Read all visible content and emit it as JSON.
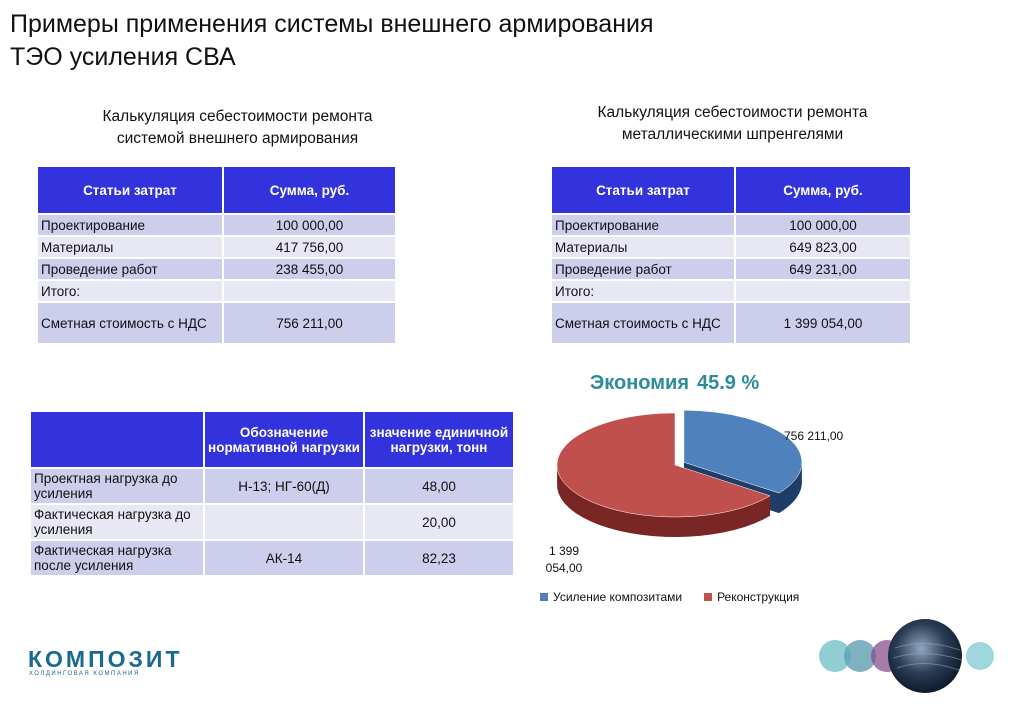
{
  "title_line1": "Примеры применения системы внешнего армирования",
  "title_line2": "ТЭО усиления СВА",
  "left_block": {
    "heading_line1": "Калькуляция себестоимости ремонта",
    "heading_line2": "системой внешнего армирования",
    "col1": "Статьи затрат",
    "col2": "Сумма, руб.",
    "rows": [
      {
        "label": "Проектирование",
        "value": "100 000,00"
      },
      {
        "label": "Материалы",
        "value": "417 756,00"
      },
      {
        "label": "Проведение работ",
        "value": "238 455,00"
      },
      {
        "label": "Итого:",
        "value": ""
      },
      {
        "label": "Сметная стоимость с НДС",
        "value": "756 211,00"
      }
    ]
  },
  "right_block": {
    "heading_line1": "Калькуляция себестоимости ремонта",
    "heading_line2": "металлическими шпренгелями",
    "col1": "Статьи затрат",
    "col2": "Сумма, руб.",
    "rows": [
      {
        "label": "Проектирование",
        "value": "100 000,00"
      },
      {
        "label": "Материалы",
        "value": "649 823,00"
      },
      {
        "label": "Проведение работ",
        "value": "649 231,00"
      },
      {
        "label": "Итого:",
        "value": ""
      },
      {
        "label": "Сметная стоимость с НДС",
        "value": "1 399 054,00"
      }
    ]
  },
  "load_table": {
    "col1": "",
    "col2": "Обозначение нормативной нагрузки",
    "col3": "значение единичной нагрузки, тонн",
    "rows": [
      {
        "label": "Проектная нагрузка до усиления",
        "designation": "Н-13; НГ-60(Д)",
        "value": "48,00"
      },
      {
        "label": "Фактическая нагрузка до усиления",
        "designation": "",
        "value": "20,00"
      },
      {
        "label": "Фактическая нагрузка после усиления",
        "designation": "АК-14",
        "value": "82,23"
      }
    ]
  },
  "economy": {
    "label": "Экономия",
    "value": "45.9 %"
  },
  "chart_data": {
    "type": "pie",
    "title": "",
    "series": [
      {
        "name": "Усиление композитами",
        "value": 756211.0,
        "data_label": "756 211,00",
        "color": "#4f81bd"
      },
      {
        "name": "Реконструкция",
        "value": 1399054.0,
        "data_label": "1 399 054,00",
        "color": "#c0504d"
      }
    ],
    "legend_position": "bottom",
    "exploded": true,
    "style": "3d"
  },
  "logo": {
    "name": "КОМПОЗИТ",
    "tagline": "ХОЛДИНГОВАЯ КОМПАНИЯ"
  },
  "colors": {
    "header": "#3333dd",
    "row_dark": "#cdcdec",
    "row_light": "#e8e8f4",
    "economy": "#2c8c9c",
    "logo": "#1a6a8f"
  }
}
